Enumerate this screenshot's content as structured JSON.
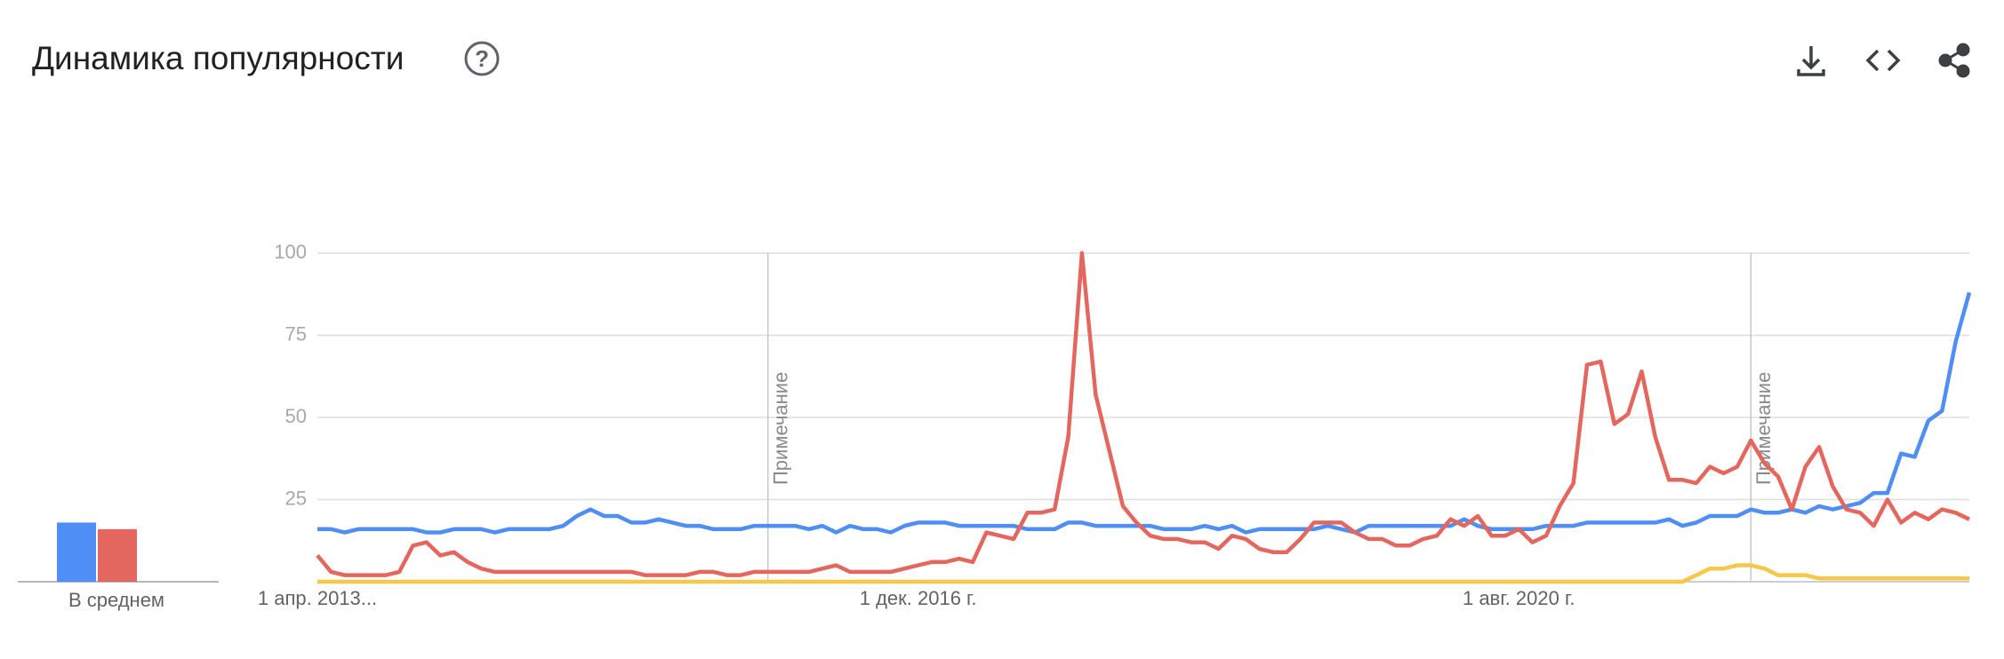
{
  "chart_data": {
    "type": "line",
    "title": "Динамика популярности",
    "average_label": "В среднем",
    "categories": [
      "1 апр. 2013...",
      null,
      null,
      null,
      null,
      null,
      null,
      null,
      null,
      null,
      null,
      null,
      null,
      null,
      null,
      null,
      null,
      null,
      null,
      null,
      null,
      null,
      null,
      null,
      null,
      null,
      null,
      null,
      null,
      null,
      null,
      null,
      null,
      null,
      null,
      null,
      null,
      null,
      null,
      null,
      null,
      null,
      null,
      null,
      "1 дек. 2016 г.",
      null,
      null,
      null,
      null,
      null,
      null,
      null,
      null,
      null,
      null,
      null,
      null,
      null,
      null,
      null,
      null,
      null,
      null,
      null,
      null,
      null,
      null,
      null,
      null,
      null,
      null,
      null,
      null,
      null,
      null,
      null,
      null,
      null,
      null,
      null,
      null,
      null,
      null,
      null,
      null,
      null,
      null,
      null,
      "1 авг. 2020 г.",
      null,
      null,
      null,
      null,
      null,
      null,
      null,
      null,
      null,
      null,
      null,
      null,
      null,
      null,
      null,
      null,
      null,
      null,
      null,
      null,
      null,
      null,
      null,
      null,
      null,
      null,
      null,
      null,
      null,
      null,
      null,
      null,
      null
    ],
    "ylim": [
      0,
      100
    ],
    "yticks": [
      25,
      50,
      75,
      100
    ],
    "grid": true,
    "annotations": [
      {
        "text": "Примечание",
        "x": 33
      },
      {
        "text": "Примечание",
        "x": 105
      }
    ],
    "series": [
      {
        "color": "#4f8ef5",
        "average": 18,
        "values": [
          16,
          16,
          15,
          16,
          16,
          16,
          16,
          16,
          15,
          15,
          16,
          16,
          16,
          15,
          16,
          16,
          16,
          16,
          17,
          20,
          22,
          20,
          20,
          18,
          18,
          19,
          18,
          17,
          17,
          16,
          16,
          16,
          17,
          17,
          17,
          17,
          16,
          17,
          15,
          17,
          16,
          16,
          15,
          17,
          18,
          18,
          18,
          17,
          17,
          17,
          17,
          17,
          16,
          16,
          16,
          18,
          18,
          17,
          17,
          17,
          17,
          17,
          16,
          16,
          16,
          17,
          16,
          17,
          15,
          16,
          16,
          16,
          16,
          16,
          17,
          16,
          15,
          17,
          17,
          17,
          17,
          17,
          17,
          17,
          19,
          17,
          16,
          16,
          16,
          16,
          17,
          17,
          17,
          18,
          18,
          18,
          18,
          18,
          18,
          19,
          17,
          18,
          20,
          20,
          20,
          22,
          21,
          21,
          22,
          21,
          23,
          22,
          23,
          24,
          27,
          27,
          39,
          38,
          49,
          52,
          73,
          88
        ]
      },
      {
        "color": "#e3675e",
        "average": 16,
        "values": [
          8,
          3,
          2,
          2,
          2,
          2,
          3,
          11,
          12,
          8,
          9,
          6,
          4,
          3,
          3,
          3,
          3,
          3,
          3,
          3,
          3,
          3,
          3,
          3,
          2,
          2,
          2,
          2,
          3,
          3,
          2,
          2,
          3,
          3,
          3,
          3,
          3,
          4,
          5,
          3,
          3,
          3,
          3,
          4,
          5,
          6,
          6,
          7,
          6,
          15,
          14,
          13,
          21,
          21,
          22,
          44,
          100,
          57,
          40,
          23,
          18,
          14,
          13,
          13,
          12,
          12,
          10,
          14,
          13,
          10,
          9,
          9,
          13,
          18,
          18,
          18,
          15,
          13,
          13,
          11,
          11,
          13,
          14,
          19,
          17,
          20,
          14,
          14,
          16,
          12,
          14,
          23,
          30,
          66,
          67,
          48,
          51,
          64,
          44,
          31,
          31,
          30,
          35,
          33,
          35,
          43,
          36,
          32,
          22,
          35,
          41,
          29,
          22,
          21,
          17,
          25,
          18,
          21,
          19,
          22,
          21,
          19
        ]
      },
      {
        "color": "#f6c748",
        "average": 0,
        "values": [
          0,
          0,
          0,
          0,
          0,
          0,
          0,
          0,
          0,
          0,
          0,
          0,
          0,
          0,
          0,
          0,
          0,
          0,
          0,
          0,
          0,
          0,
          0,
          0,
          0,
          0,
          0,
          0,
          0,
          0,
          0,
          0,
          0,
          0,
          0,
          0,
          0,
          0,
          0,
          0,
          0,
          0,
          0,
          0,
          0,
          0,
          0,
          0,
          0,
          0,
          0,
          0,
          0,
          0,
          0,
          0,
          0,
          0,
          0,
          0,
          0,
          0,
          0,
          0,
          0,
          0,
          0,
          0,
          0,
          0,
          0,
          0,
          0,
          0,
          0,
          0,
          0,
          0,
          0,
          0,
          0,
          0,
          0,
          0,
          0,
          0,
          0,
          0,
          0,
          0,
          0,
          0,
          0,
          0,
          0,
          0,
          0,
          0,
          0,
          0,
          0,
          2,
          4,
          4,
          5,
          5,
          4,
          2,
          2,
          2,
          1,
          1,
          1,
          1,
          1,
          1,
          1,
          1,
          1,
          1,
          1,
          1
        ]
      }
    ]
  }
}
